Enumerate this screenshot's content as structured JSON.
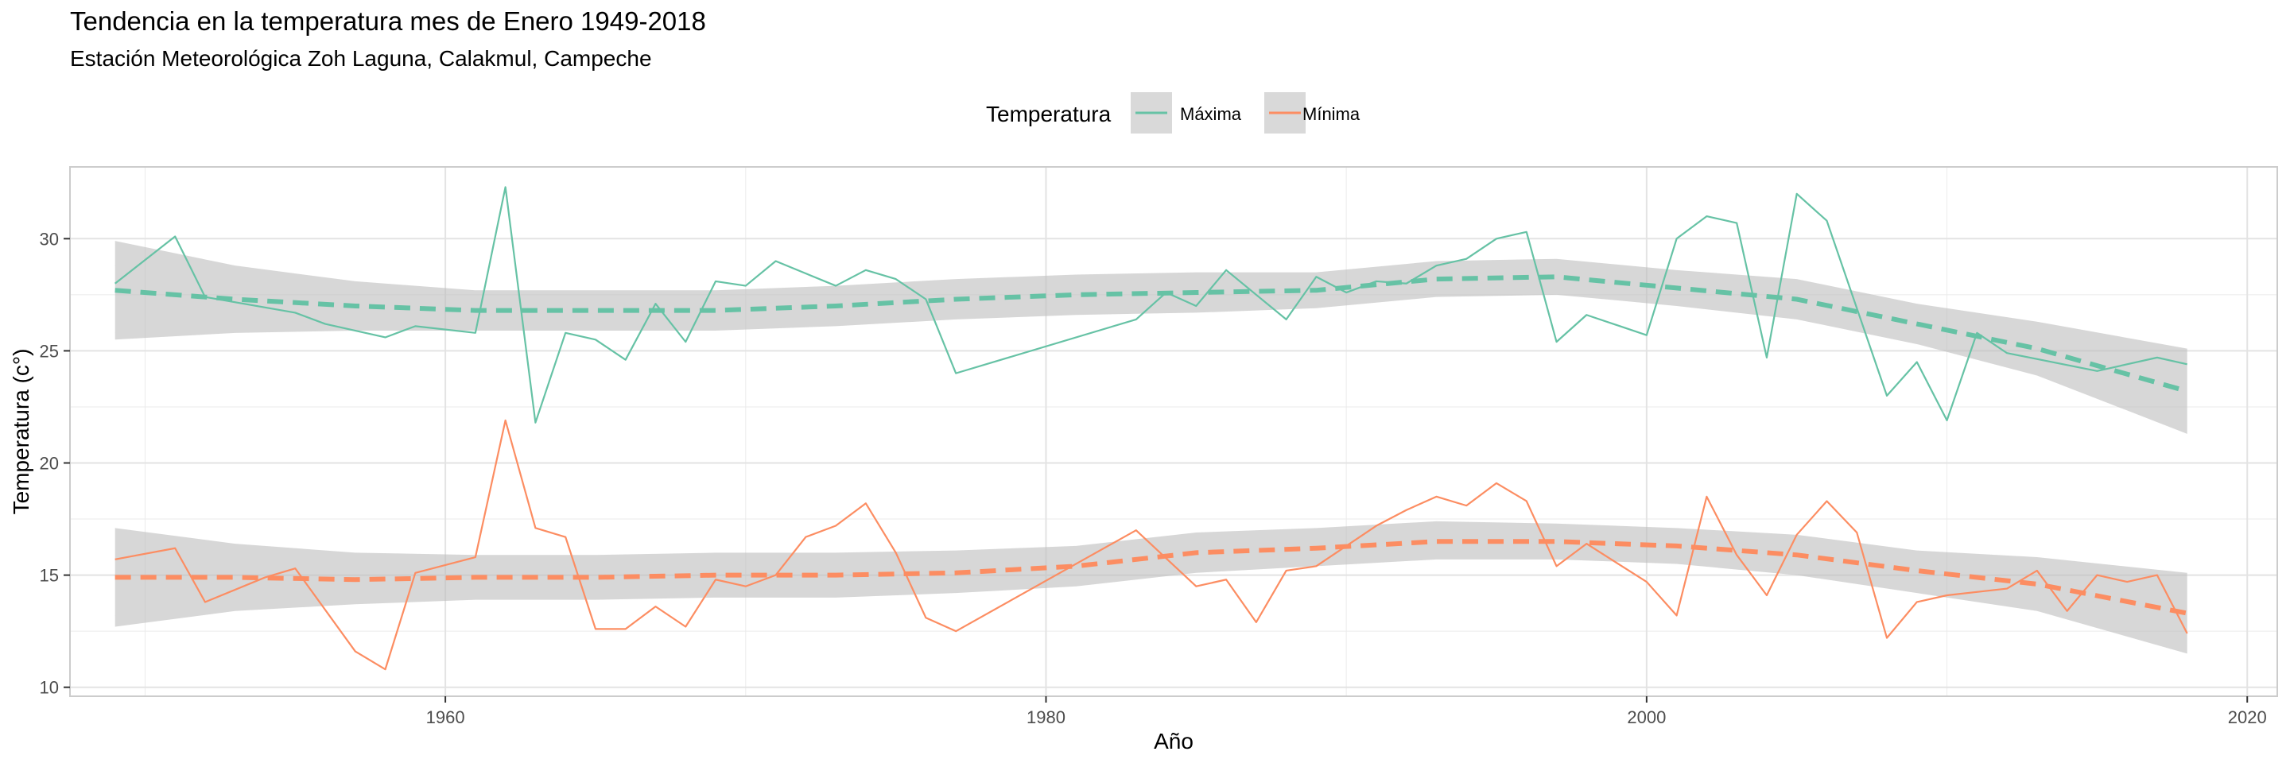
{
  "chart_data": {
    "type": "line",
    "title": "Tendencia en la temperatura mes de Enero 1949-2018",
    "subtitle": "Estación Meteorológica Zoh Laguna, Calakmul, Campeche",
    "xlabel": "Año",
    "ylabel": "Temperatura (c°)",
    "xlim": [
      1947.5,
      2021
    ],
    "ylim": [
      9.6,
      33.2
    ],
    "x_ticks": [
      1960,
      1980,
      2000,
      2020
    ],
    "y_ticks": [
      10,
      15,
      20,
      25,
      30
    ],
    "grid": true,
    "legend": {
      "title": "Temperatura",
      "position": "top"
    },
    "series": [
      {
        "name": "Máxima",
        "color": "#66c2a5",
        "x": [
          1949,
          1951,
          1952,
          1955,
          1956,
          1958,
          1959,
          1961,
          1962,
          1963,
          1964,
          1965,
          1966,
          1967,
          1968,
          1969,
          1970,
          1971,
          1973,
          1974,
          1975,
          1976,
          1977,
          1983,
          1984,
          1985,
          1986,
          1988,
          1989,
          1990,
          1991,
          1992,
          1993,
          1994,
          1995,
          1996,
          1997,
          1998,
          2000,
          2001,
          2002,
          2003,
          2004,
          2005,
          2006,
          2008,
          2009,
          2010,
          2011,
          2012,
          2015,
          2017,
          2018
        ],
        "values": [
          28.0,
          30.1,
          27.4,
          26.7,
          26.2,
          25.6,
          26.1,
          25.8,
          32.3,
          21.8,
          25.8,
          25.5,
          24.6,
          27.1,
          25.4,
          28.1,
          27.9,
          29.0,
          27.9,
          28.6,
          28.2,
          27.3,
          24.0,
          26.4,
          27.6,
          27.0,
          28.6,
          26.4,
          28.3,
          27.6,
          28.1,
          28.0,
          28.8,
          29.1,
          30.0,
          30.3,
          25.4,
          26.6,
          25.7,
          30.0,
          31.0,
          30.7,
          24.7,
          32.0,
          30.8,
          23.0,
          24.5,
          21.9,
          25.8,
          24.9,
          24.1,
          24.7,
          24.4
        ]
      },
      {
        "name": "Mínima",
        "color": "#fc8d62",
        "x": [
          1949,
          1951,
          1952,
          1954,
          1955,
          1957,
          1958,
          1959,
          1961,
          1962,
          1963,
          1964,
          1965,
          1966,
          1967,
          1968,
          1969,
          1970,
          1971,
          1972,
          1973,
          1974,
          1975,
          1976,
          1977,
          1983,
          1985,
          1986,
          1987,
          1988,
          1989,
          1990,
          1991,
          1992,
          1993,
          1994,
          1995,
          1996,
          1997,
          1998,
          2000,
          2001,
          2002,
          2003,
          2004,
          2005,
          2006,
          2007,
          2008,
          2009,
          2010,
          2012,
          2013,
          2014,
          2015,
          2016,
          2017,
          2018
        ],
        "values": [
          15.7,
          16.2,
          13.8,
          14.9,
          15.3,
          11.6,
          10.8,
          15.1,
          15.8,
          21.9,
          17.1,
          16.7,
          12.6,
          12.6,
          13.6,
          12.7,
          14.8,
          14.5,
          15.0,
          16.7,
          17.2,
          18.2,
          16.0,
          13.1,
          12.5,
          17.0,
          14.5,
          14.8,
          12.9,
          15.2,
          15.4,
          16.3,
          17.2,
          17.9,
          18.5,
          18.1,
          19.1,
          18.3,
          15.4,
          16.4,
          14.7,
          13.2,
          18.5,
          15.9,
          14.1,
          16.8,
          18.3,
          16.9,
          12.2,
          13.8,
          14.1,
          14.4,
          15.2,
          13.4,
          15.0,
          14.7,
          15.0,
          12.4
        ]
      },
      {
        "name": "Máxima",
        "color": "#66c2a5",
        "kind": "trend",
        "x": [
          1949,
          1953,
          1957,
          1961,
          1965,
          1969,
          1973,
          1977,
          1981,
          1985,
          1989,
          1993,
          1997,
          2001,
          2005,
          2009,
          2013,
          2018
        ],
        "values": [
          27.7,
          27.3,
          27.0,
          26.8,
          26.8,
          26.8,
          27.0,
          27.3,
          27.5,
          27.6,
          27.7,
          28.2,
          28.3,
          27.8,
          27.3,
          26.2,
          25.1,
          23.2
        ],
        "ci_lower": [
          25.5,
          25.8,
          25.9,
          25.9,
          25.9,
          25.9,
          26.1,
          26.4,
          26.6,
          26.7,
          26.9,
          27.4,
          27.5,
          27.0,
          26.4,
          25.3,
          23.9,
          21.3
        ],
        "ci_upper": [
          29.9,
          28.8,
          28.1,
          27.7,
          27.7,
          27.7,
          27.9,
          28.2,
          28.4,
          28.5,
          28.5,
          29.0,
          29.1,
          28.6,
          28.2,
          27.1,
          26.3,
          25.1
        ]
      },
      {
        "name": "Mínima",
        "color": "#fc8d62",
        "kind": "trend",
        "x": [
          1949,
          1953,
          1957,
          1961,
          1965,
          1969,
          1973,
          1977,
          1981,
          1985,
          1989,
          1993,
          1997,
          2001,
          2005,
          2009,
          2013,
          2018
        ],
        "values": [
          14.9,
          14.9,
          14.8,
          14.9,
          14.9,
          15.0,
          15.0,
          15.1,
          15.4,
          16.0,
          16.2,
          16.5,
          16.5,
          16.3,
          15.9,
          15.2,
          14.6,
          13.3
        ],
        "ci_lower": [
          12.7,
          13.4,
          13.7,
          13.9,
          13.9,
          14.0,
          14.0,
          14.2,
          14.5,
          15.1,
          15.4,
          15.7,
          15.7,
          15.5,
          15.0,
          14.2,
          13.4,
          11.5
        ],
        "ci_upper": [
          17.1,
          16.4,
          16.0,
          15.9,
          15.9,
          16.0,
          16.0,
          16.1,
          16.3,
          16.9,
          17.1,
          17.4,
          17.3,
          17.1,
          16.8,
          16.1,
          15.8,
          15.1
        ]
      }
    ]
  }
}
